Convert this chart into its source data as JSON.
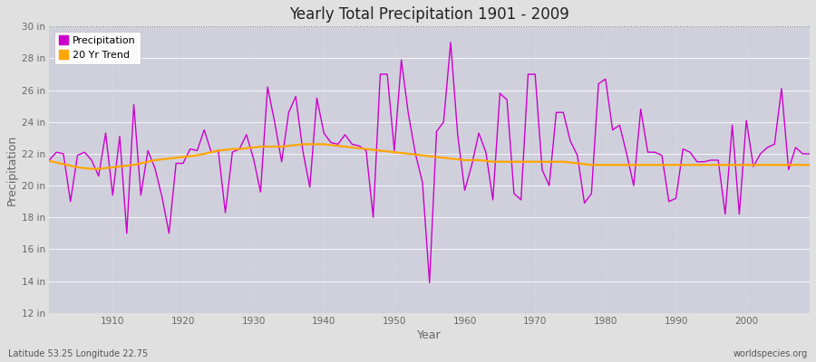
{
  "title": "Yearly Total Precipitation 1901 - 2009",
  "xlabel": "Year",
  "ylabel": "Precipitation",
  "xlim": [
    1901,
    2009
  ],
  "ylim": [
    12,
    30
  ],
  "yticks": [
    12,
    14,
    16,
    18,
    20,
    22,
    24,
    26,
    28,
    30
  ],
  "ytick_labels": [
    "12 in",
    "14 in",
    "16 in",
    "18 in",
    "20 in",
    "22 in",
    "24 in",
    "26 in",
    "28 in",
    "30 in"
  ],
  "xticks": [
    1910,
    1920,
    1930,
    1940,
    1950,
    1960,
    1970,
    1980,
    1990,
    2000
  ],
  "precip_color": "#cc00cc",
  "trend_color": "#ffa500",
  "fig_bg_color": "#e0e0e0",
  "plot_bg_color": "#d0d0dc",
  "tick_color": "#666666",
  "subtitle": "Latitude 53.25 Longitude 22.75",
  "credit": "worldspecies.org",
  "precip_values": [
    21.6,
    22.1,
    22.0,
    19.0,
    21.9,
    22.1,
    21.6,
    20.6,
    23.3,
    19.4,
    23.1,
    17.0,
    25.1,
    19.4,
    22.2,
    21.1,
    19.3,
    17.0,
    21.4,
    21.4,
    22.3,
    22.2,
    23.5,
    22.1,
    22.2,
    18.3,
    22.1,
    22.3,
    23.2,
    21.7,
    19.6,
    26.2,
    24.0,
    21.5,
    24.6,
    25.6,
    22.2,
    19.9,
    25.5,
    23.3,
    22.7,
    22.6,
    23.2,
    22.6,
    22.5,
    22.2,
    18.0,
    27.0,
    27.0,
    22.2,
    27.9,
    24.5,
    22.0,
    20.2,
    13.9,
    23.4,
    24.0,
    29.0,
    23.2,
    19.7,
    21.3,
    23.3,
    22.1,
    19.1,
    25.8,
    25.4,
    19.5,
    19.1,
    27.0,
    27.0,
    21.0,
    20.0,
    24.6,
    24.6,
    22.8,
    21.9,
    18.9,
    19.5,
    26.4,
    26.7,
    23.5,
    23.8,
    22.0,
    20.0,
    24.8,
    22.1,
    22.1,
    21.9,
    19.0,
    19.2,
    22.3,
    22.1,
    21.5,
    21.5,
    21.6,
    21.6,
    18.2,
    23.8,
    18.2,
    24.1,
    21.2,
    22.0,
    22.4,
    22.6,
    26.1,
    21.0,
    22.4,
    22.0,
    22.0
  ],
  "trend_values": [
    21.55,
    21.45,
    21.35,
    21.25,
    21.15,
    21.1,
    21.05,
    21.05,
    21.1,
    21.15,
    21.2,
    21.25,
    21.3,
    21.4,
    21.5,
    21.6,
    21.65,
    21.7,
    21.75,
    21.8,
    21.85,
    21.9,
    22.0,
    22.1,
    22.2,
    22.25,
    22.3,
    22.3,
    22.35,
    22.4,
    22.45,
    22.45,
    22.45,
    22.45,
    22.5,
    22.55,
    22.6,
    22.6,
    22.6,
    22.6,
    22.55,
    22.5,
    22.45,
    22.4,
    22.35,
    22.3,
    22.25,
    22.2,
    22.15,
    22.1,
    22.05,
    22.0,
    21.95,
    21.9,
    21.85,
    21.8,
    21.75,
    21.7,
    21.65,
    21.6,
    21.6,
    21.6,
    21.55,
    21.5,
    21.5,
    21.5,
    21.5,
    21.5,
    21.5,
    21.5,
    21.5,
    21.5,
    21.5,
    21.5,
    21.45,
    21.4,
    21.35,
    21.3,
    21.3,
    21.3,
    21.3,
    21.3,
    21.3,
    21.3,
    21.3,
    21.3,
    21.3,
    21.3,
    21.3,
    21.3,
    21.3,
    21.3,
    21.3,
    21.3,
    21.3,
    21.3,
    21.3,
    21.3,
    21.3,
    21.3,
    21.3,
    21.3,
    21.3,
    21.3,
    21.3,
    21.3,
    21.3,
    21.3,
    21.3
  ]
}
